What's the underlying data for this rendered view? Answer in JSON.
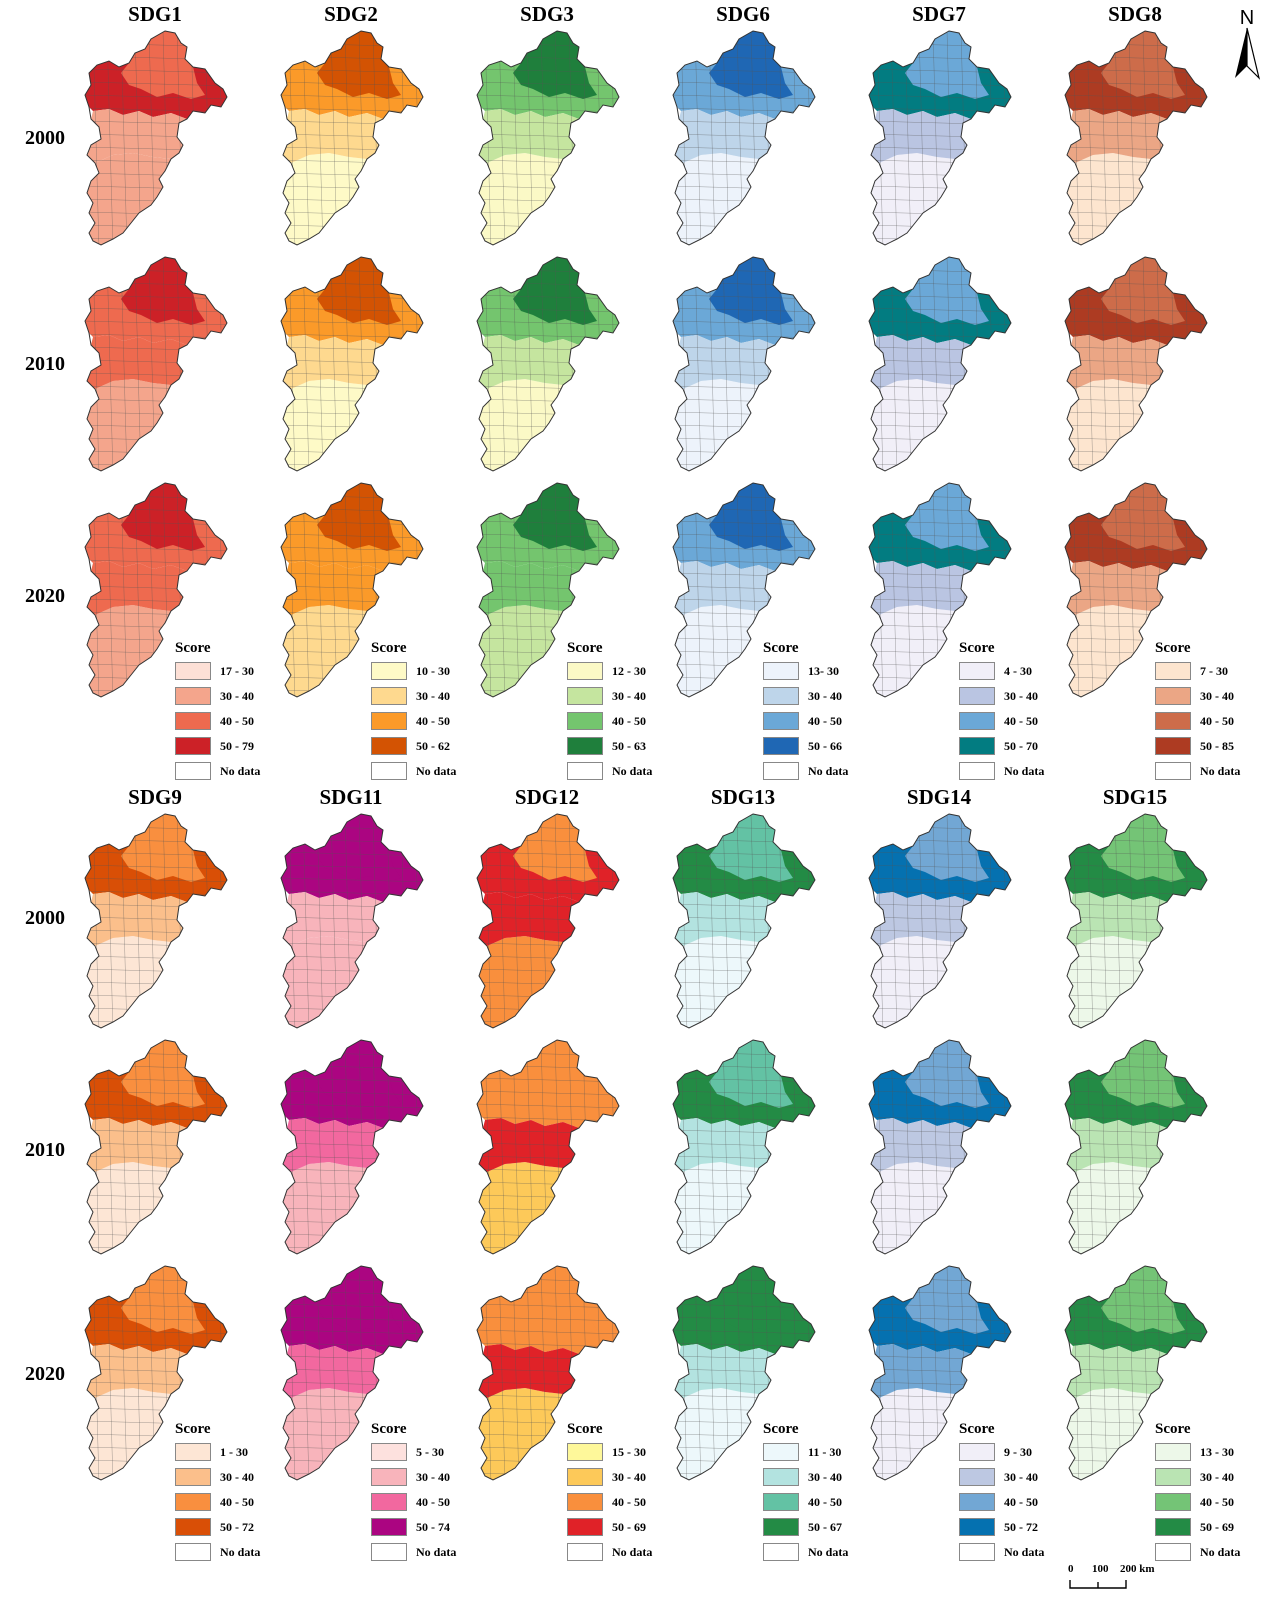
{
  "north_label": "N",
  "scale": {
    "ticks": [
      "0",
      "100",
      "200 km"
    ]
  },
  "colors": {
    "boundary": "#555555",
    "nodata": "#ffffff"
  },
  "blocks": [
    {
      "years": [
        "2000",
        "2010",
        "2020"
      ],
      "panels": [
        {
          "title": "SDG1",
          "legend": {
            "title": "Score",
            "labels": [
              "17 - 30",
              "30 - 40",
              "40 - 50",
              "50 - 79",
              "No data"
            ]
          },
          "palette": [
            "#fde0d6",
            "#f4a58c",
            "#ee6a4f",
            "#cc2127",
            "#ffffff"
          ],
          "class_by_year": [
            [
              3,
              2,
              1,
              1,
              1
            ],
            [
              2,
              3,
              2,
              1,
              1
            ],
            [
              2,
              3,
              2,
              1,
              1
            ]
          ]
        },
        {
          "title": "SDG2",
          "legend": {
            "title": "Score",
            "labels": [
              "10 - 30",
              "30 - 40",
              "40 - 50",
              "50 - 62",
              "No data"
            ]
          },
          "palette": [
            "#fefac7",
            "#fed98f",
            "#fb9a29",
            "#d35303",
            "#ffffff"
          ],
          "class_by_year": [
            [
              2,
              3,
              1,
              0,
              0
            ],
            [
              2,
              3,
              1,
              0,
              1
            ],
            [
              2,
              3,
              2,
              1,
              0
            ]
          ]
        },
        {
          "title": "SDG3",
          "legend": {
            "title": "Score",
            "labels": [
              "12 - 30",
              "30 - 40",
              "40 - 50",
              "50 - 63",
              "No data"
            ]
          },
          "palette": [
            "#fbf9c6",
            "#c5e59f",
            "#74c56e",
            "#1f7f3c",
            "#ffffff"
          ],
          "class_by_year": [
            [
              2,
              3,
              1,
              0,
              1
            ],
            [
              2,
              3,
              1,
              0,
              1
            ],
            [
              2,
              3,
              2,
              1,
              1
            ]
          ]
        },
        {
          "title": "SDG6",
          "legend": {
            "title": "Score",
            "labels": [
              "13- 30",
              "30 - 40",
              "40 - 50",
              "50 - 66",
              "No data"
            ]
          },
          "palette": [
            "#edf3fb",
            "#bed5ea",
            "#6ba8d7",
            "#1f67b4",
            "#ffffff"
          ],
          "class_by_year": [
            [
              2,
              3,
              1,
              0,
              1
            ],
            [
              2,
              3,
              1,
              0,
              1
            ],
            [
              2,
              3,
              1,
              0,
              1
            ]
          ]
        },
        {
          "title": "SDG7",
          "legend": {
            "title": "Score",
            "labels": [
              "4 - 30",
              "30 - 40",
              "40 - 50",
              "50 - 70",
              "No data"
            ]
          },
          "palette": [
            "#f1eff8",
            "#bac5e2",
            "#6ba8d7",
            "#027c81",
            "#ffffff"
          ],
          "class_by_year": [
            [
              3,
              2,
              1,
              0,
              1
            ],
            [
              3,
              2,
              1,
              0,
              1
            ],
            [
              3,
              2,
              1,
              0,
              2
            ]
          ]
        },
        {
          "title": "SDG8",
          "legend": {
            "title": "Score",
            "labels": [
              "7 - 30",
              "30 - 40",
              "40 - 50",
              "50 - 85",
              "No data"
            ]
          },
          "palette": [
            "#fde5cf",
            "#eba685",
            "#cd6c4a",
            "#ad3b22",
            "#ffffff"
          ],
          "class_by_year": [
            [
              3,
              2,
              1,
              0,
              0
            ],
            [
              3,
              2,
              1,
              0,
              0
            ],
            [
              3,
              2,
              1,
              0,
              0
            ]
          ]
        }
      ]
    },
    {
      "years": [
        "2000",
        "2010",
        "2020"
      ],
      "panels": [
        {
          "title": "SDG9",
          "legend": {
            "title": "Score",
            "labels": [
              "1 - 30",
              "30 - 40",
              "40 - 50",
              "50 - 72",
              "No data"
            ]
          },
          "palette": [
            "#fde6d5",
            "#fbbf8b",
            "#f98f3f",
            "#d94f06",
            "#ffffff"
          ],
          "class_by_year": [
            [
              3,
              2,
              1,
              0,
              0
            ],
            [
              3,
              2,
              1,
              0,
              0
            ],
            [
              3,
              2,
              1,
              0,
              0
            ]
          ]
        },
        {
          "title": "SDG11",
          "legend": {
            "title": "Score",
            "labels": [
              "5 - 30",
              "30 - 40",
              "40 - 50",
              "50 - 74",
              "No data"
            ]
          },
          "palette": [
            "#fde1de",
            "#f8b4bb",
            "#f2689f",
            "#ab0581",
            "#ffffff"
          ],
          "class_by_year": [
            [
              3,
              3,
              1,
              1,
              0
            ],
            [
              3,
              3,
              2,
              1,
              0
            ],
            [
              3,
              3,
              2,
              1,
              0
            ]
          ]
        },
        {
          "title": "SDG12",
          "legend": {
            "title": "Score",
            "labels": [
              "15 - 30",
              "30 - 40",
              "40 - 50",
              "50 - 69",
              "No data"
            ]
          },
          "palette": [
            "#fef89a",
            "#fdc959",
            "#f98f3d",
            "#e02228",
            "#ffffff"
          ],
          "class_by_year": [
            [
              3,
              2,
              3,
              2,
              2
            ],
            [
              2,
              2,
              3,
              1,
              2
            ],
            [
              2,
              2,
              3,
              1,
              2
            ]
          ]
        },
        {
          "title": "SDG13",
          "legend": {
            "title": "Score",
            "labels": [
              "11 - 30",
              "30 - 40",
              "40 - 50",
              "50 - 67",
              "No data"
            ]
          },
          "palette": [
            "#edf8fb",
            "#b3e3e0",
            "#63c2a4",
            "#238b45",
            "#ffffff"
          ],
          "class_by_year": [
            [
              3,
              2,
              1,
              0,
              1
            ],
            [
              3,
              2,
              1,
              0,
              1
            ],
            [
              3,
              3,
              1,
              0,
              1
            ]
          ]
        },
        {
          "title": "SDG14",
          "legend": {
            "title": "Score",
            "labels": [
              "9 - 30",
              "30 - 40",
              "40 - 50",
              "50 - 72",
              "No data"
            ]
          },
          "palette": [
            "#f1eff8",
            "#bdc8e2",
            "#72a7d4",
            "#0571b0",
            "#ffffff"
          ],
          "class_by_year": [
            [
              3,
              2,
              1,
              0,
              1
            ],
            [
              3,
              2,
              1,
              0,
              1
            ],
            [
              3,
              2,
              2,
              0,
              1
            ]
          ]
        },
        {
          "title": "SDG15",
          "legend": {
            "title": "Score",
            "labels": [
              "13 - 30",
              "30 - 40",
              "40 - 50",
              "50 - 69",
              "No data"
            ]
          },
          "palette": [
            "#edf8e9",
            "#bae4b3",
            "#74c476",
            "#238b45",
            "#ffffff"
          ],
          "class_by_year": [
            [
              3,
              2,
              1,
              0,
              1
            ],
            [
              3,
              2,
              1,
              0,
              1
            ],
            [
              3,
              2,
              1,
              0,
              1
            ]
          ]
        }
      ]
    }
  ]
}
